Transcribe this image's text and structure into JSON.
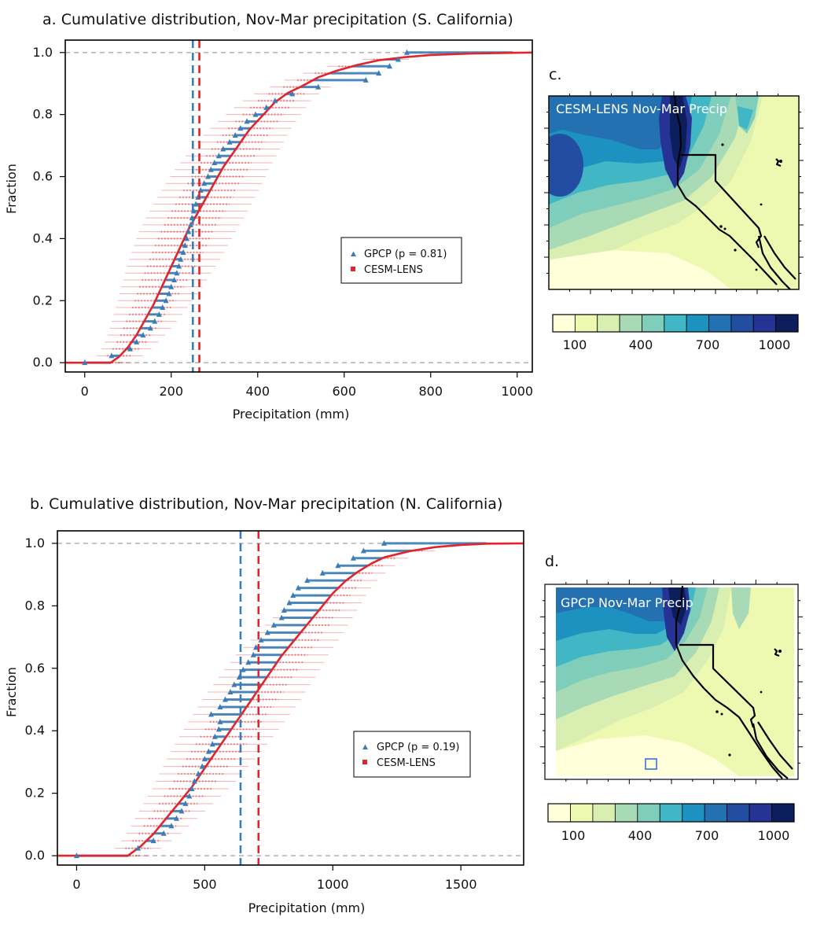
{
  "colors": {
    "gpcp": "#3a7db8",
    "cesm": "#e0262c",
    "ref_line": "#aaaaaa",
    "colorbar": [
      "#ffffd9",
      "#edf8b1",
      "#d9efb2",
      "#a8dbb5",
      "#7fcdbb",
      "#41b6c4",
      "#1d91c0",
      "#2471b2",
      "#234da0",
      "#253494",
      "#0c1f5c"
    ]
  },
  "chart_data": [
    {
      "panel": "a.",
      "type": "line",
      "title": "a. Cumulative distribution, Nov-Mar precipitation (S. California)",
      "xlabel": "Precipitation (mm)",
      "ylabel": "Fraction",
      "xlim": [
        -45,
        1035
      ],
      "ylim": [
        -0.03,
        1.04
      ],
      "xticks": [
        0,
        200,
        400,
        600,
        800,
        1000
      ],
      "yticks": [
        "0.0",
        "0.2",
        "0.4",
        "0.6",
        "0.8",
        "1.0"
      ],
      "legend": {
        "position": "center-right",
        "entries": [
          "GPCP (p = 0.81)",
          "CESM-LENS"
        ]
      },
      "mean_lines": {
        "gpcp": 250,
        "cesm": 265
      },
      "series": [
        {
          "name": "GPCP (p = 0.81)",
          "kind": "triangles",
          "x": [
            0,
            62,
            105,
            120,
            135,
            152,
            162,
            172,
            180,
            188,
            195,
            200,
            207,
            213,
            218,
            222,
            228,
            232,
            236,
            240,
            245,
            248,
            252,
            257,
            262,
            268,
            276,
            285,
            292,
            300,
            310,
            320,
            335,
            348,
            360,
            375,
            395,
            420,
            440,
            480,
            540,
            650,
            680,
            705,
            725,
            745
          ]
        },
        {
          "name": "CESM-LENS",
          "kind": "line",
          "x": [
            -45,
            60,
            80,
            100,
            120,
            140,
            160,
            180,
            200,
            220,
            240,
            260,
            280,
            300,
            320,
            340,
            360,
            380,
            400,
            420,
            440,
            470,
            500,
            540,
            580,
            630,
            680,
            740,
            800,
            900,
            1035
          ],
          "y": [
            0.0,
            0.0,
            0.02,
            0.05,
            0.09,
            0.14,
            0.19,
            0.25,
            0.31,
            0.37,
            0.43,
            0.48,
            0.53,
            0.58,
            0.63,
            0.67,
            0.71,
            0.75,
            0.78,
            0.81,
            0.84,
            0.87,
            0.89,
            0.92,
            0.94,
            0.96,
            0.975,
            0.985,
            0.992,
            0.997,
            1.0
          ]
        }
      ]
    },
    {
      "panel": "b.",
      "type": "line",
      "title": "b. Cumulative distribution, Nov-Mar precipitation (N. California)",
      "xlabel": "Precipitation (mm)",
      "ylabel": "Fraction",
      "xlim": [
        -75,
        1745
      ],
      "ylim": [
        -0.03,
        1.04
      ],
      "xticks": [
        0,
        500,
        1000,
        1500
      ],
      "yticks": [
        "0.0",
        "0.2",
        "0.4",
        "0.6",
        "0.8",
        "1.0"
      ],
      "legend": {
        "position": "center-right",
        "entries": [
          "GPCP (p = 0.19)",
          "CESM-LENS"
        ]
      },
      "mean_lines": {
        "gpcp": 640,
        "cesm": 710
      },
      "series": [
        {
          "name": "GPCP (p = 0.19)",
          "kind": "triangles",
          "x": [
            0,
            240,
            300,
            340,
            370,
            390,
            410,
            425,
            440,
            450,
            460,
            475,
            490,
            500,
            515,
            530,
            540,
            555,
            560,
            525,
            560,
            580,
            600,
            615,
            635,
            650,
            670,
            690,
            700,
            720,
            745,
            770,
            800,
            810,
            830,
            845,
            865,
            900,
            960,
            1020,
            1080,
            1120,
            1200
          ]
        },
        {
          "name": "CESM-LENS",
          "kind": "line",
          "x": [
            -75,
            200,
            250,
            300,
            350,
            400,
            450,
            500,
            550,
            600,
            650,
            700,
            750,
            800,
            850,
            900,
            950,
            1000,
            1050,
            1100,
            1150,
            1200,
            1300,
            1400,
            1500,
            1600,
            1745
          ],
          "y": [
            0.0,
            0.0,
            0.03,
            0.07,
            0.12,
            0.17,
            0.22,
            0.28,
            0.34,
            0.4,
            0.46,
            0.52,
            0.58,
            0.64,
            0.69,
            0.74,
            0.79,
            0.84,
            0.88,
            0.91,
            0.935,
            0.955,
            0.975,
            0.988,
            0.995,
            0.999,
            1.0
          ]
        }
      ]
    }
  ],
  "maps": [
    {
      "panel": "c.",
      "title": "CESM-LENS Nov-Mar Precip",
      "colorbar_labels": [
        "100",
        "400",
        "700",
        "1000"
      ]
    },
    {
      "panel": "d.",
      "title": "GPCP Nov-Mar Precip",
      "colorbar_labels": [
        "100",
        "400",
        "700",
        "1000"
      ]
    }
  ]
}
